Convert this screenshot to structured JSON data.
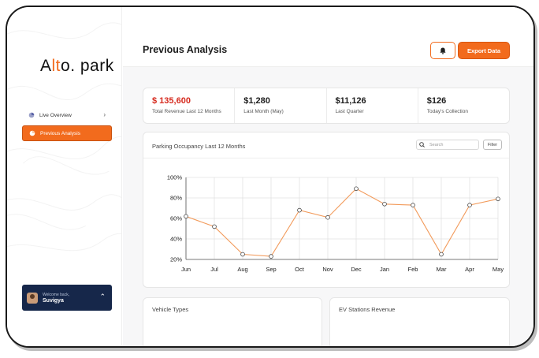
{
  "brand": {
    "logo_pre": "A",
    "logo_accent": "lt",
    "logo_mid": "o",
    "logo_post": "park"
  },
  "sidebar": {
    "items": [
      {
        "label": "Live Overview",
        "icon": "pie-chart-icon"
      },
      {
        "label": "Previous Analysis",
        "icon": "pie-chart-icon"
      }
    ],
    "user": {
      "welcome": "Welcome back,",
      "name": "Suvigya"
    }
  },
  "header": {
    "title": "Previous Analysis",
    "bell_icon": "bell-icon",
    "export_label": "Export Data"
  },
  "stats": [
    {
      "value": "$ 135,600",
      "label": "Total Revenue Last 12 Months"
    },
    {
      "value": "$1,280",
      "label": "Last Month (May)"
    },
    {
      "value": "$11,126",
      "label": "Last Quarter"
    },
    {
      "value": "$126",
      "label": "Today's Collection"
    }
  ],
  "chart_panel": {
    "title": "Parking Occupancy Last 12 Months",
    "search_placeholder": "Search",
    "filter_label": "Filter"
  },
  "chart_data": {
    "type": "line",
    "categories": [
      "Jun",
      "Jul",
      "Aug",
      "Sep",
      "Oct",
      "Nov",
      "Dec",
      "Jan",
      "Feb",
      "Mar",
      "Apr",
      "May"
    ],
    "values": [
      62,
      52,
      25,
      23,
      68,
      61,
      89,
      74,
      73,
      25,
      73,
      79
    ],
    "yticks": [
      "100%",
      "80%",
      "60%",
      "40%",
      "20%"
    ],
    "ylim": [
      20,
      100
    ],
    "grid": true,
    "title": "Parking Occupancy Last 12 Months",
    "line_color": "#f29a5a"
  },
  "bottom_cards": [
    {
      "title": "Vehicle Types"
    },
    {
      "title": "EV Stations Revenue"
    }
  ],
  "colors": {
    "accent": "#f26b1d",
    "navy": "#16274a",
    "red": "#d62a1e"
  }
}
